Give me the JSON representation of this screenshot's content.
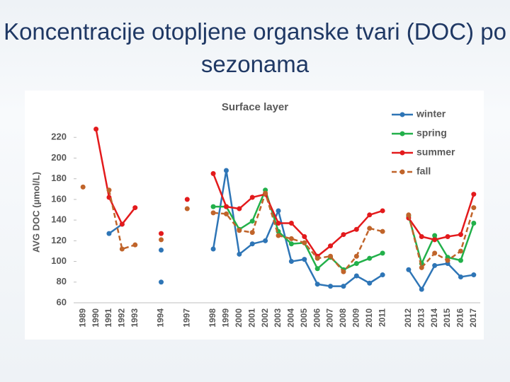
{
  "slide_title": "Koncentracije otopljene organske tvari (DOC) po sezonama",
  "chart_data": {
    "type": "line",
    "title": "Surface layer",
    "y_label": "AVG DOC (µmol/L)",
    "categories": [
      "1989",
      "1990",
      "1991",
      "1992",
      "1993",
      null,
      "1994",
      null,
      "1997",
      null,
      "1998",
      "1999",
      "2000",
      "2001",
      "2002",
      "2003",
      "2004",
      "2005",
      "2006",
      "2007",
      "2008",
      "2009",
      "2010",
      "2011",
      null,
      "2012",
      "2013",
      "2014",
      "2015",
      "2016",
      "2017"
    ],
    "ylim": [
      60,
      240
    ],
    "yticks": [
      60,
      80,
      100,
      120,
      140,
      160,
      180,
      200,
      220
    ],
    "legend": "top-right",
    "series": [
      {
        "name": "winter",
        "color": "#2e75b6",
        "dashed": false,
        "values": [
          null,
          null,
          127,
          136,
          null,
          null,
          111,
          null,
          null,
          null,
          112,
          188,
          107,
          117,
          120,
          149,
          100,
          102,
          78,
          76,
          76,
          86,
          79,
          87,
          null,
          92,
          73,
          96,
          98,
          85,
          87
        ]
      },
      {
        "name": "spring",
        "color": "#22b04a",
        "dashed": false,
        "values": [
          null,
          null,
          null,
          null,
          null,
          null,
          null,
          null,
          null,
          null,
          153,
          153,
          131,
          139,
          169,
          129,
          117,
          118,
          93,
          104,
          92,
          98,
          103,
          108,
          null,
          144,
          98,
          125,
          104,
          101,
          137
        ]
      },
      {
        "name": "summer",
        "color": "#e31a1c",
        "dashed": false,
        "values": [
          null,
          228,
          162,
          136,
          152,
          null,
          127,
          null,
          160,
          null,
          185,
          153,
          151,
          162,
          165,
          137,
          137,
          124,
          105,
          115,
          126,
          131,
          145,
          149,
          null,
          142,
          124,
          121,
          124,
          126,
          165
        ]
      },
      {
        "name": "fall",
        "color": "#c0642a",
        "dashed": true,
        "values": [
          172,
          null,
          169,
          112,
          116,
          null,
          121,
          null,
          151,
          null,
          147,
          146,
          130,
          128,
          166,
          125,
          122,
          118,
          103,
          105,
          90,
          105,
          132,
          129,
          null,
          145,
          94,
          108,
          101,
          110,
          152
        ]
      },
      {
        "color": "#2e75b6",
        "dashed": false,
        "values": [
          null,
          null,
          null,
          null,
          null,
          null,
          80,
          null,
          null,
          null,
          null,
          null,
          null,
          null,
          null,
          null,
          null,
          null,
          null,
          null,
          null,
          null,
          null,
          null,
          null,
          null,
          null,
          null,
          null,
          null,
          null
        ]
      }
    ]
  }
}
